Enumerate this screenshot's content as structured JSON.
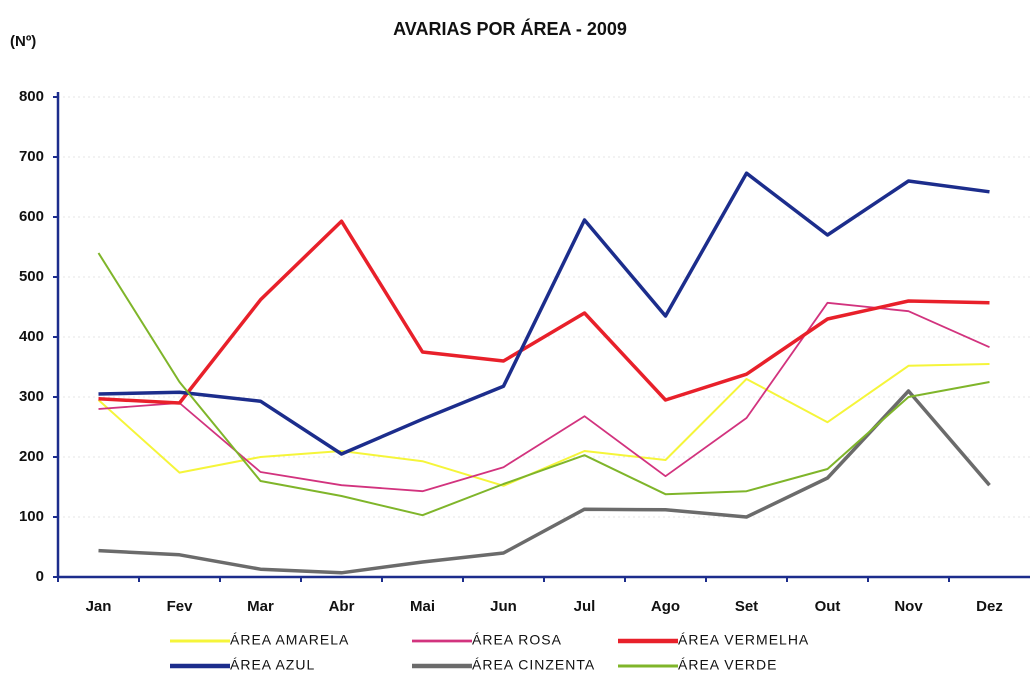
{
  "chart_data": {
    "type": "line",
    "title": "AVARIAS POR ÁREA - 2009",
    "y_label": "(Nº)",
    "categories": [
      "Jan",
      "Fev",
      "Mar",
      "Abr",
      "Mai",
      "Jun",
      "Jul",
      "Ago",
      "Set",
      "Out",
      "Nov",
      "Dez"
    ],
    "series": [
      {
        "name": "ÁREA AMARELA",
        "color": "#f5f53a",
        "values": [
          295,
          174,
          200,
          210,
          193,
          152,
          210,
          195,
          330,
          258,
          352,
          355
        ]
      },
      {
        "name": "ÁREA ROSA",
        "color": "#d2337e",
        "values": [
          280,
          290,
          175,
          153,
          143,
          183,
          268,
          168,
          265,
          457,
          443,
          383
        ]
      },
      {
        "name": "ÁREA VERMELHA",
        "color": "#e8202a",
        "values": [
          297,
          290,
          462,
          593,
          375,
          360,
          440,
          295,
          338,
          430,
          460,
          457
        ]
      },
      {
        "name": "ÁREA AZUL",
        "color": "#1c2d8c",
        "values": [
          305,
          308,
          293,
          205,
          263,
          318,
          595,
          435,
          673,
          570,
          660,
          642
        ]
      },
      {
        "name": "ÁREA CINZENTA",
        "color": "#6b6b6b",
        "values": [
          44,
          37,
          13,
          7,
          25,
          40,
          113,
          112,
          100,
          165,
          310,
          153
        ]
      },
      {
        "name": "ÁREA VERDE",
        "color": "#7fb52a",
        "values": [
          540,
          325,
          160,
          135,
          103,
          155,
          203,
          138,
          143,
          180,
          300,
          325
        ]
      }
    ],
    "ylim": [
      0,
      800
    ],
    "yticks": [
      0,
      100,
      200,
      300,
      400,
      500,
      600,
      700,
      800
    ],
    "grid": true
  }
}
